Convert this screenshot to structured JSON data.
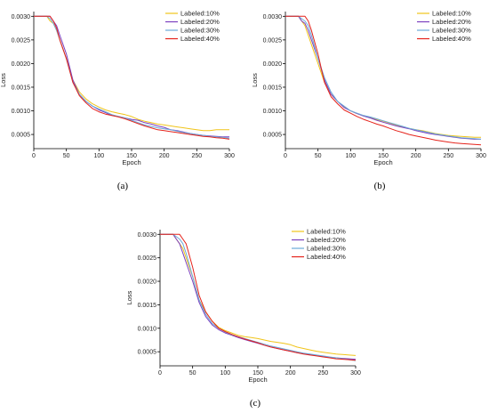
{
  "chart_data": [
    {
      "type": "line",
      "panel_label": "(a)",
      "xlabel": "Epoch",
      "ylabel": "Loss",
      "xlim": [
        0,
        300
      ],
      "ylim": [
        0.0002,
        0.0031
      ],
      "xticks": [
        0,
        50,
        100,
        150,
        200,
        250,
        300
      ],
      "yticks": [
        0.0005,
        0.001,
        0.0015,
        0.002,
        0.0025,
        0.003
      ],
      "ytick_labels": [
        "0.0005",
        "0.0010",
        "0.0015",
        "0.0020",
        "0.0025",
        "0.0030"
      ],
      "legend": "top-right",
      "grid": false,
      "series": [
        {
          "name": "Labeled:10%",
          "color": "#f0c419",
          "x": [
            0,
            20,
            25,
            30,
            35,
            40,
            50,
            60,
            70,
            80,
            90,
            100,
            110,
            120,
            130,
            140,
            150,
            160,
            170,
            180,
            190,
            200,
            210,
            220,
            230,
            240,
            250,
            260,
            270,
            280,
            290,
            300
          ],
          "y": [
            0.003,
            0.003,
            0.0029,
            0.00285,
            0.0027,
            0.0025,
            0.0021,
            0.00165,
            0.0014,
            0.00125,
            0.00115,
            0.00108,
            0.00102,
            0.00098,
            0.00095,
            0.00092,
            0.00088,
            0.00082,
            0.00078,
            0.00075,
            0.00072,
            0.0007,
            0.00068,
            0.00066,
            0.00064,
            0.00062,
            0.0006,
            0.00058,
            0.00058,
            0.0006,
            0.0006,
            0.0006
          ]
        },
        {
          "name": "Labeled:20%",
          "color": "#7b3fbf",
          "x": [
            0,
            20,
            25,
            30,
            35,
            40,
            50,
            60,
            70,
            80,
            90,
            100,
            110,
            120,
            130,
            140,
            150,
            160,
            170,
            180,
            190,
            200,
            210,
            220,
            230,
            240,
            250,
            260,
            270,
            280,
            290,
            300
          ],
          "y": [
            0.003,
            0.003,
            0.003,
            0.0029,
            0.0028,
            0.0026,
            0.0022,
            0.00165,
            0.00135,
            0.0012,
            0.0011,
            0.00102,
            0.00096,
            0.0009,
            0.00088,
            0.00085,
            0.00082,
            0.0008,
            0.00075,
            0.00072,
            0.00068,
            0.00065,
            0.0006,
            0.00058,
            0.00055,
            0.00052,
            0.0005,
            0.00048,
            0.00047,
            0.00046,
            0.00045,
            0.00045
          ]
        },
        {
          "name": "Labeled:30%",
          "color": "#6aa9d8",
          "x": [
            0,
            20,
            25,
            30,
            35,
            40,
            50,
            60,
            70,
            80,
            90,
            100,
            110,
            120,
            130,
            140,
            150,
            160,
            170,
            180,
            190,
            200,
            210,
            220,
            230,
            240,
            250,
            260,
            270,
            280,
            290,
            300
          ],
          "y": [
            0.003,
            0.003,
            0.00295,
            0.00285,
            0.0027,
            0.0025,
            0.0021,
            0.0016,
            0.00135,
            0.0012,
            0.0011,
            0.00104,
            0.00098,
            0.00092,
            0.00088,
            0.00085,
            0.0008,
            0.00075,
            0.0007,
            0.00067,
            0.00064,
            0.00062,
            0.0006,
            0.00057,
            0.00054,
            0.00052,
            0.0005,
            0.00048,
            0.00046,
            0.00045,
            0.00044,
            0.00042
          ]
        },
        {
          "name": "Labeled:40%",
          "color": "#e5231b",
          "x": [
            0,
            20,
            25,
            30,
            35,
            40,
            50,
            60,
            70,
            80,
            90,
            100,
            110,
            120,
            130,
            140,
            150,
            160,
            170,
            180,
            190,
            200,
            210,
            220,
            230,
            240,
            250,
            260,
            270,
            280,
            290,
            300
          ],
          "y": [
            0.003,
            0.003,
            0.003,
            0.0029,
            0.00275,
            0.0025,
            0.0021,
            0.0016,
            0.00132,
            0.00117,
            0.00105,
            0.00098,
            0.00093,
            0.0009,
            0.00087,
            0.00083,
            0.00078,
            0.00073,
            0.00068,
            0.00064,
            0.0006,
            0.00058,
            0.00056,
            0.00054,
            0.00052,
            0.0005,
            0.00048,
            0.00046,
            0.00045,
            0.00043,
            0.00042,
            0.0004
          ]
        }
      ]
    },
    {
      "type": "line",
      "panel_label": "(b)",
      "xlabel": "Epoch",
      "ylabel": "Loss",
      "xlim": [
        0,
        300
      ],
      "ylim": [
        0.0002,
        0.0031
      ],
      "xticks": [
        0,
        50,
        100,
        150,
        200,
        250,
        300
      ],
      "yticks": [
        0.0005,
        0.001,
        0.0015,
        0.002,
        0.0025,
        0.003
      ],
      "ytick_labels": [
        "0.0005",
        "0.0010",
        "0.0015",
        "0.0020",
        "0.0025",
        "0.0030"
      ],
      "legend": "top-right",
      "grid": false,
      "series": [
        {
          "name": "Labeled:10%",
          "color": "#f0c419",
          "x": [
            0,
            20,
            25,
            30,
            35,
            40,
            50,
            60,
            70,
            80,
            90,
            100,
            110,
            120,
            130,
            140,
            150,
            160,
            170,
            180,
            190,
            200,
            210,
            220,
            230,
            240,
            250,
            260,
            270,
            280,
            290,
            300
          ],
          "y": [
            0.003,
            0.003,
            0.0029,
            0.0028,
            0.0026,
            0.0024,
            0.002,
            0.0016,
            0.00135,
            0.0012,
            0.00108,
            0.001,
            0.00094,
            0.0009,
            0.00086,
            0.00082,
            0.00078,
            0.00074,
            0.0007,
            0.00066,
            0.00063,
            0.0006,
            0.00058,
            0.00055,
            0.00052,
            0.0005,
            0.00048,
            0.00047,
            0.00046,
            0.00045,
            0.00044,
            0.00044
          ]
        },
        {
          "name": "Labeled:20%",
          "color": "#7b3fbf",
          "x": [
            0,
            20,
            25,
            30,
            35,
            40,
            50,
            60,
            70,
            80,
            90,
            100,
            110,
            120,
            130,
            140,
            150,
            160,
            170,
            180,
            190,
            200,
            210,
            220,
            230,
            240,
            250,
            260,
            270,
            280,
            290,
            300
          ],
          "y": [
            0.003,
            0.003,
            0.0029,
            0.00285,
            0.0027,
            0.0025,
            0.0021,
            0.00165,
            0.00135,
            0.0012,
            0.00107,
            0.001,
            0.00094,
            0.00089,
            0.00085,
            0.0008,
            0.00076,
            0.00072,
            0.00068,
            0.00065,
            0.00062,
            0.00058,
            0.00055,
            0.00052,
            0.0005,
            0.00048,
            0.00046,
            0.00044,
            0.00042,
            0.00041,
            0.0004,
            0.0004
          ]
        },
        {
          "name": "Labeled:30%",
          "color": "#6aa9d8",
          "x": [
            0,
            20,
            25,
            30,
            35,
            40,
            50,
            60,
            70,
            80,
            90,
            100,
            110,
            120,
            130,
            140,
            150,
            160,
            170,
            180,
            190,
            200,
            210,
            220,
            230,
            240,
            250,
            260,
            270,
            280,
            290,
            300
          ],
          "y": [
            0.003,
            0.003,
            0.00295,
            0.0029,
            0.0028,
            0.0026,
            0.0021,
            0.0017,
            0.0014,
            0.0012,
            0.0011,
            0.001,
            0.00095,
            0.0009,
            0.00087,
            0.00083,
            0.00079,
            0.00075,
            0.00071,
            0.00067,
            0.00063,
            0.0006,
            0.00057,
            0.00054,
            0.00051,
            0.00049,
            0.00047,
            0.00045,
            0.00043,
            0.00042,
            0.00041,
            0.0004
          ]
        },
        {
          "name": "Labeled:40%",
          "color": "#e5231b",
          "x": [
            0,
            20,
            25,
            30,
            35,
            40,
            50,
            60,
            70,
            80,
            90,
            100,
            110,
            120,
            130,
            140,
            150,
            160,
            170,
            180,
            190,
            200,
            210,
            220,
            230,
            240,
            250,
            260,
            270,
            280,
            290,
            300
          ],
          "y": [
            0.003,
            0.003,
            0.003,
            0.003,
            0.0029,
            0.0027,
            0.0022,
            0.0016,
            0.0013,
            0.00115,
            0.00102,
            0.00095,
            0.00088,
            0.00082,
            0.00077,
            0.00072,
            0.00068,
            0.00063,
            0.00058,
            0.00054,
            0.0005,
            0.00047,
            0.00044,
            0.00041,
            0.00038,
            0.00036,
            0.00034,
            0.00032,
            0.00031,
            0.0003,
            0.00029,
            0.00028
          ]
        }
      ]
    },
    {
      "type": "line",
      "panel_label": "(c)",
      "xlabel": "Epoch",
      "ylabel": "Loss",
      "xlim": [
        0,
        300
      ],
      "ylim": [
        0.0002,
        0.0031
      ],
      "xticks": [
        0,
        50,
        100,
        150,
        200,
        250,
        300
      ],
      "yticks": [
        0.0005,
        0.001,
        0.0015,
        0.002,
        0.0025,
        0.003
      ],
      "ytick_labels": [
        "0.0005",
        "0.0010",
        "0.0015",
        "0.0020",
        "0.0025",
        "0.0030"
      ],
      "legend": "top-right",
      "grid": false,
      "series": [
        {
          "name": "Labeled:10%",
          "color": "#f0c419",
          "x": [
            0,
            20,
            25,
            30,
            35,
            40,
            50,
            60,
            70,
            80,
            90,
            100,
            110,
            120,
            130,
            140,
            150,
            160,
            170,
            180,
            190,
            200,
            210,
            220,
            230,
            240,
            250,
            260,
            270,
            280,
            290,
            300
          ],
          "y": [
            0.003,
            0.003,
            0.0029,
            0.0028,
            0.0027,
            0.0025,
            0.0021,
            0.0016,
            0.00135,
            0.00115,
            0.00102,
            0.00095,
            0.0009,
            0.00085,
            0.00082,
            0.0008,
            0.00078,
            0.00075,
            0.00072,
            0.0007,
            0.00068,
            0.00065,
            0.0006,
            0.00057,
            0.00054,
            0.00051,
            0.00049,
            0.00047,
            0.00045,
            0.00044,
            0.00043,
            0.00042
          ]
        },
        {
          "name": "Labeled:20%",
          "color": "#7b3fbf",
          "x": [
            0,
            20,
            25,
            30,
            35,
            40,
            50,
            60,
            70,
            80,
            90,
            100,
            110,
            120,
            130,
            140,
            150,
            160,
            170,
            180,
            190,
            200,
            210,
            220,
            230,
            240,
            250,
            260,
            270,
            280,
            290,
            300
          ],
          "y": [
            0.003,
            0.003,
            0.0029,
            0.0028,
            0.0026,
            0.0024,
            0.002,
            0.00155,
            0.00125,
            0.00107,
            0.00097,
            0.0009,
            0.00085,
            0.0008,
            0.00076,
            0.00072,
            0.00068,
            0.00064,
            0.0006,
            0.00057,
            0.00054,
            0.00051,
            0.00048,
            0.00046,
            0.00044,
            0.00042,
            0.0004,
            0.00038,
            0.00037,
            0.00036,
            0.00035,
            0.00034
          ]
        },
        {
          "name": "Labeled:30%",
          "color": "#6aa9d8",
          "x": [
            0,
            20,
            25,
            30,
            35,
            40,
            50,
            60,
            70,
            80,
            90,
            100,
            110,
            120,
            130,
            140,
            150,
            160,
            170,
            180,
            190,
            200,
            210,
            220,
            230,
            240,
            250,
            260,
            270,
            280,
            290,
            300
          ],
          "y": [
            0.003,
            0.003,
            0.00295,
            0.0029,
            0.0028,
            0.0026,
            0.0021,
            0.0016,
            0.0013,
            0.0011,
            0.001,
            0.00092,
            0.00086,
            0.00082,
            0.00078,
            0.00074,
            0.0007,
            0.00066,
            0.00062,
            0.00059,
            0.00056,
            0.00053,
            0.0005,
            0.00047,
            0.00045,
            0.00043,
            0.00041,
            0.00039,
            0.00037,
            0.00035,
            0.00033,
            0.00031
          ]
        },
        {
          "name": "Labeled:40%",
          "color": "#e5231b",
          "x": [
            0,
            20,
            25,
            30,
            35,
            40,
            50,
            60,
            70,
            80,
            90,
            100,
            110,
            120,
            130,
            140,
            150,
            160,
            170,
            180,
            190,
            200,
            210,
            220,
            230,
            240,
            250,
            260,
            270,
            280,
            290,
            300
          ],
          "y": [
            0.003,
            0.003,
            0.003,
            0.003,
            0.0029,
            0.0028,
            0.0023,
            0.0017,
            0.00135,
            0.00115,
            0.001,
            0.00093,
            0.00087,
            0.00082,
            0.00077,
            0.00073,
            0.00069,
            0.00064,
            0.0006,
            0.00057,
            0.00054,
            0.00051,
            0.00048,
            0.00045,
            0.00043,
            0.00041,
            0.00039,
            0.00037,
            0.00035,
            0.00034,
            0.00033,
            0.00032
          ]
        }
      ]
    }
  ]
}
